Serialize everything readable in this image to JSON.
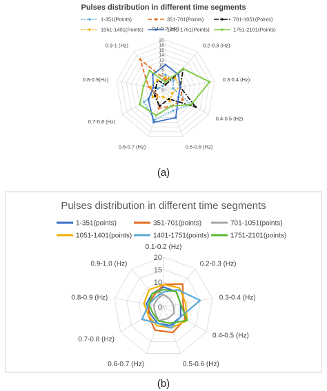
{
  "figure": {
    "panel_a_label": "(a)",
    "panel_b_label": "(b)"
  },
  "chart_data": [
    {
      "type": "radar",
      "title": "Pulses distribution in different time segments",
      "categories": [
        "0.1-0.2 (Hz)",
        "0.2-0.3 (Hz)",
        "0.3-0.4 (Hz)",
        "0.4-0.5 (Hz)",
        "0.5-0.6 (Hz)",
        "0.6-0.7 (Hz)",
        "0.7-0.8 (Hz)",
        "0.8-0.9(Hz)",
        "0.9-1 (Hz)"
      ],
      "rlim": [
        0,
        20
      ],
      "rticks": [
        0,
        2,
        4,
        6,
        8,
        10,
        12,
        14,
        16,
        18,
        20
      ],
      "legend_position": "top",
      "series": [
        {
          "name": "1-351(Points)",
          "color": "#5aaad8",
          "dash": "2,2",
          "values": [
            6,
            5,
            3,
            12,
            9,
            13,
            10,
            3,
            2
          ]
        },
        {
          "name": "351-701(Points)",
          "color": "#e46c1e",
          "dash": "6,3",
          "values": [
            4,
            8,
            6,
            8,
            7,
            8,
            4,
            7,
            16
          ]
        },
        {
          "name": "701-1051(Points)",
          "color": "#111111",
          "dash": "7,2,2,2",
          "values": [
            2,
            11,
            6,
            14,
            4,
            7,
            5,
            4,
            5
          ]
        },
        {
          "name": "1051-1401(Points)",
          "color": "#f2b100",
          "dash": "2,2",
          "values": [
            5,
            6,
            6,
            3,
            5,
            3,
            6,
            6,
            5
          ]
        },
        {
          "name": "1401-1751(Points)",
          "color": "#3a6ec8",
          "dash": "",
          "values": [
            10,
            8,
            6,
            6,
            12,
            14,
            8,
            5,
            8
          ]
        },
        {
          "name": "1751-2101(Points)",
          "color": "#78c83c",
          "dash": "",
          "values": [
            3,
            11,
            18,
            12,
            7,
            11,
            12,
            9,
            10
          ]
        }
      ]
    },
    {
      "type": "radar",
      "title": "Pulses distribution in different time segments",
      "categories": [
        "0.1-0.2 (Hz)",
        "0.2-0.3 (Hz)",
        "0.3-0.4 (Hz)",
        "0.4-0.5 (Hz)",
        "0.5-0.6 (Hz)",
        "0.6-0.7 (Hz)",
        "0.7-0.8 (Hz)",
        "0.8-0.9 (Hz)",
        "0.9-1.0 (Hz)"
      ],
      "rlim": [
        0,
        20
      ],
      "rticks": [
        0,
        5,
        10,
        15,
        20
      ],
      "legend_position": "top",
      "series": [
        {
          "name": "1-351(points)",
          "color": "#3a6ec8",
          "values": [
            8,
            8,
            7,
            8,
            8,
            7,
            6,
            7,
            7
          ]
        },
        {
          "name": "351-701(points)",
          "color": "#e46c1e",
          "values": [
            9,
            12,
            8,
            10,
            11,
            10,
            7,
            6,
            6
          ]
        },
        {
          "name": "701-1051(points)",
          "color": "#a6a6a6",
          "values": [
            5,
            4,
            4,
            5,
            5,
            6,
            4,
            4,
            4
          ]
        },
        {
          "name": "1051-1401(points)",
          "color": "#f2b100",
          "values": [
            9,
            10,
            9,
            11,
            9,
            8,
            7,
            8,
            9
          ]
        },
        {
          "name": "1401-1751(points)",
          "color": "#5aaad8",
          "values": [
            6,
            9,
            15,
            8,
            9,
            7,
            10,
            6,
            5
          ]
        },
        {
          "name": "1751-2101(points)",
          "color": "#58b830",
          "values": [
            7,
            8,
            7,
            11,
            7,
            6,
            5,
            6,
            7
          ]
        }
      ]
    }
  ]
}
